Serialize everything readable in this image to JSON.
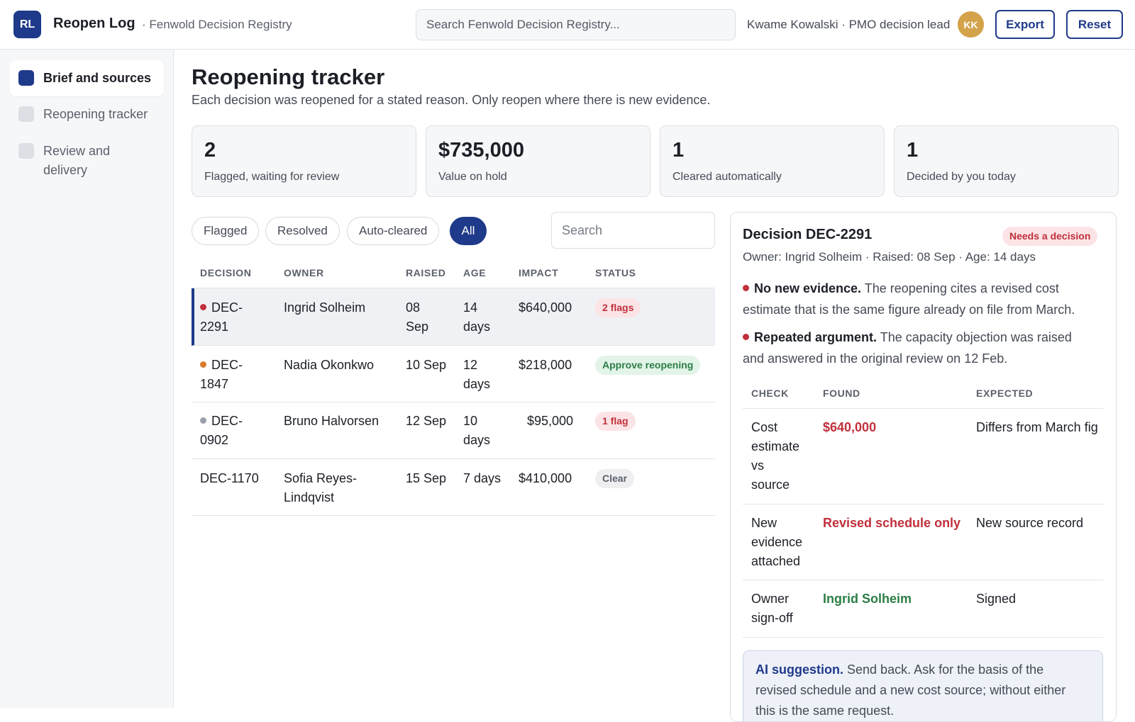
{
  "header": {
    "logo": "RL",
    "app_title": "Reopen Log",
    "app_sub": "· Fenwold Decision Registry",
    "search_placeholder": "Search Fenwold Decision Registry...",
    "user_label": "Kwame Kowalski · PMO decision lead",
    "avatar": "KK",
    "export_label": "Export",
    "reset_label": "Reset"
  },
  "sidebar": {
    "items": [
      {
        "label": "Brief and sources",
        "active": true
      },
      {
        "label": "Reopening tracker",
        "active": false
      },
      {
        "label": "Review and delivery",
        "active": false
      }
    ]
  },
  "page": {
    "title": "Reopening tracker",
    "subtitle": "Each decision was reopened for a stated reason. Only reopen where there is new evidence."
  },
  "stats": [
    {
      "value": "2",
      "label": "Flagged, waiting for review"
    },
    {
      "value": "$735,000",
      "label": "Value on hold"
    },
    {
      "value": "1",
      "label": "Cleared automatically"
    },
    {
      "value": "1",
      "label": "Decided by you today"
    }
  ],
  "filters": [
    "Flagged",
    "Resolved",
    "Auto-cleared",
    "All"
  ],
  "active_filter": "All",
  "table": {
    "search_placeholder": "Search",
    "headers": [
      "DECISION",
      "OWNER",
      "RAISED",
      "AGE",
      "IMPACT",
      "STATUS"
    ],
    "rows": [
      {
        "decision": "DEC-2291",
        "decision_l1": "DEC-",
        "decision_l2": "2291",
        "dot_color": "#c0303b",
        "owner": "Ingrid Solheim",
        "raised_l1": "08",
        "raised_l2": "Sep",
        "age_l1": "14",
        "age_l2": "days",
        "impact": "$640,000",
        "status": "2 flags",
        "status_kind": "red"
      },
      {
        "decision": "DEC-1847",
        "decision_l1": "DEC-",
        "decision_l2": "1847",
        "dot_color": "#d97a2b",
        "owner": "Nadia Okonkwo",
        "raised_l1": "10 Sep",
        "raised_l2": "",
        "age_l1": "12",
        "age_l2": "days",
        "impact": "$218,000",
        "status": "Approve reopening",
        "status_kind": "green"
      },
      {
        "decision": "DEC-0902",
        "decision_l1": "DEC-",
        "decision_l2": "0902",
        "dot_color": "#9aa0ab",
        "owner": "Bruno Halvorsen",
        "raised_l1": "12 Sep",
        "raised_l2": "",
        "age_l1": "10",
        "age_l2": "days",
        "impact": "$95,000",
        "status": "1 flag",
        "status_kind": "red"
      },
      {
        "decision": "DEC-1170",
        "decision_l1": "DEC-1170",
        "decision_l2": "",
        "dot_color": "",
        "owner_l1": "Sofia Reyes-",
        "owner_l2": "Lindqvist",
        "raised_l1": "15 Sep",
        "raised_l2": "",
        "age_l1": "7 days",
        "age_l2": "",
        "impact": "$410,000",
        "status": "Clear",
        "status_kind": "gray"
      }
    ]
  },
  "detail": {
    "title": "Decision DEC-2291",
    "badge": "Needs a decision",
    "meta": "Owner: Ingrid Solheim · Raised: 08 Sep · Age: 14 days",
    "findings": [
      {
        "lead": "No new evidence.",
        "line1": " The reopening cites a revised cost",
        "line2": "estimate that is the same figure already on file from March."
      },
      {
        "lead": "Repeated argument.",
        "line1": " The capacity objection was raised",
        "line2": "and answered in the original review on 12 Feb."
      }
    ],
    "check_headers": [
      "CHECK",
      "FOUND",
      "EXPECTED"
    ],
    "checks": [
      {
        "check": [
          "Cost",
          "estimate",
          "vs",
          "source"
        ],
        "found": "$640,000",
        "found_kind": "red",
        "expected": "Differs from March fig"
      },
      {
        "check": [
          "New",
          "evidence",
          "attached"
        ],
        "found": "Revised schedule only",
        "found_kind": "red",
        "expected": "New source record"
      },
      {
        "check": [
          "Owner",
          "sign-off"
        ],
        "found": "Ingrid Solheim",
        "found_kind": "green",
        "expected": "Signed"
      }
    ],
    "ai": {
      "lead": "AI suggestion.",
      "line1": " Send back. Ask for the basis of the",
      "line2": "revised schedule and a new cost source; without either",
      "line3": "this is the same request."
    }
  }
}
